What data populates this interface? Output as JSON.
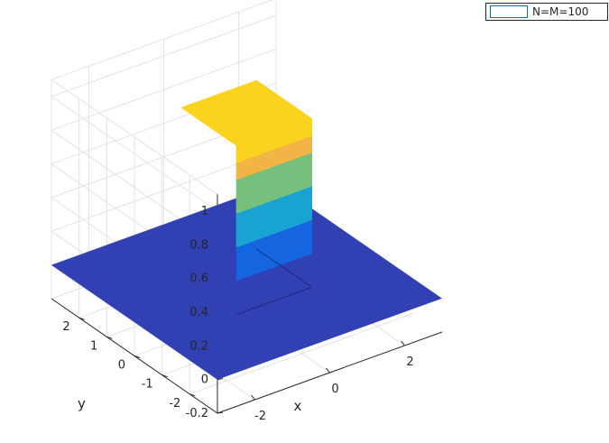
{
  "chart_data": {
    "type": "surface",
    "title": "",
    "xlabel": "x",
    "ylabel": "y",
    "zlabel": "",
    "xlim": [
      -3,
      3
    ],
    "ylim": [
      -3,
      3
    ],
    "zlim": [
      -0.2,
      1.1
    ],
    "x_ticks": [
      {
        "value": -2,
        "label": "-2"
      },
      {
        "value": 0,
        "label": "0"
      },
      {
        "value": 2,
        "label": "2"
      }
    ],
    "y_ticks": [
      {
        "value": -2,
        "label": "-2"
      },
      {
        "value": -1,
        "label": "-1"
      },
      {
        "value": 0,
        "label": "0"
      },
      {
        "value": 1,
        "label": "1"
      },
      {
        "value": 2,
        "label": "2"
      }
    ],
    "z_ticks": [
      {
        "value": 1,
        "label": "1"
      },
      {
        "value": 0.8,
        "label": "0.8"
      },
      {
        "value": 0.6,
        "label": "0.6"
      },
      {
        "value": 0.4,
        "label": "0.4"
      },
      {
        "value": 0.2,
        "label": "0.2"
      },
      {
        "value": 0,
        "label": "0"
      },
      {
        "value": -0.2,
        "label": "-0.2"
      }
    ],
    "surface": {
      "base_value": 0,
      "base_extent": {
        "x": [
          -3,
          3
        ],
        "y": [
          -3,
          3
        ]
      },
      "pulse_value": 1,
      "pulse_extent": {
        "x": [
          -1,
          1
        ],
        "y": [
          -1,
          1
        ]
      },
      "color_levels": [
        {
          "from": 0,
          "to": 0.2,
          "color": "#3140b3"
        },
        {
          "from": 0.2,
          "to": 0.4,
          "color": "#1565e0"
        },
        {
          "from": 0.4,
          "to": 0.6,
          "color": "#19a3d2"
        },
        {
          "from": 0.6,
          "to": 0.8,
          "color": "#76bf7c"
        },
        {
          "from": 0.8,
          "to": 0.9,
          "color": "#f2b445"
        },
        {
          "from": 0.9,
          "to": 1.0,
          "color": "#f9d31e"
        }
      ]
    },
    "grid": true,
    "legend": {
      "placement": "top-right",
      "entries": [
        "N=M=100"
      ]
    }
  },
  "colors": {
    "legend_edge": "#0072bd",
    "grid": "#e3e3e3",
    "axis": "#262626"
  }
}
